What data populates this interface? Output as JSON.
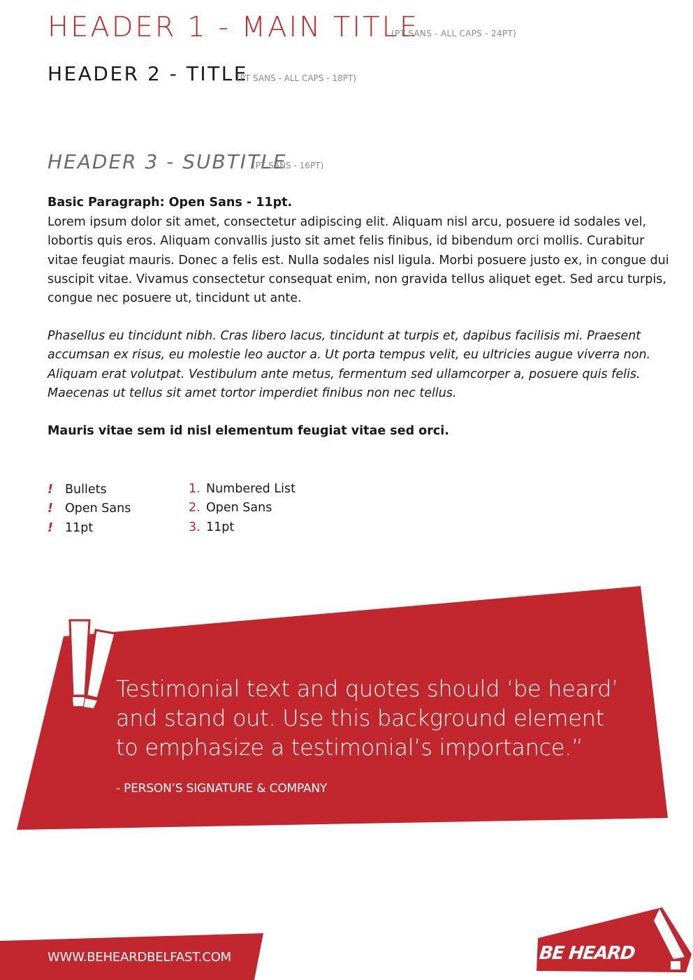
{
  "headers": {
    "h1": "HEADER 1 - MAIN TITLE",
    "h1_note": "(PT SANS - ALL CAPS - 24PT)",
    "h2": "HEADER 2 - TITLE",
    "h2_note": "(PT SANS - ALL CAPS - 18PT)",
    "h3": "HEADER 3 - SUBTITLE",
    "h3_note": "(PT SANS  - 16PT)"
  },
  "body": {
    "paragraph_heading": "Basic Paragraph: Open Sans - 11pt.",
    "paragraph": "Lorem ipsum dolor sit amet, consectetur adipiscing elit. Aliquam nisl arcu, posuere id sodales vel, lobortis quis eros. Aliquam convallis justo sit amet felis finibus, id bibendum orci mollis. Curabitur vitae feugiat mauris. Donec a felis est. Nulla sodales nisl ligula. Morbi posuere justo ex, in congue dui suscipit vitae. Vivamus consectetur consequat enim, non gravida tellus aliquet eget. Sed arcu turpis, congue nec posuere ut, tincidunt ut ante.",
    "italic_paragraph": "Phasellus eu tincidunt nibh. Cras libero lacus, tincidunt at turpis et, dapibus facilisis mi. Praesent accumsan ex risus, eu molestie leo auctor a. Ut porta tempus velit, eu ultricies augue viverra non. Aliquam erat volutpat. Vestibulum ante metus, fermentum sed ullamcorper a, posuere quis felis. Maecenas ut tellus sit amet tortor imperdiet finibus non nec tellus.",
    "bold_line": "Mauris vitae sem id nisl elementum feugiat vitae sed orci."
  },
  "bullet_list": {
    "marker": "!",
    "items": [
      "Bullets",
      "Open Sans",
      "11pt"
    ]
  },
  "numbered_list": {
    "markers": [
      "1.",
      "2.",
      "3."
    ],
    "items": [
      "Numbered List",
      "Open Sans",
      "11pt"
    ]
  },
  "testimonial": {
    "quote": "Testimonial text and quotes should ‘be heard’ and stand out. Use this background element to emphasize a testimonial’s importance.”",
    "signature": "- PERSON’S SIGNATURE & COMPANY"
  },
  "footer": {
    "url": "WWW.BEHEARDBELFAST.COM",
    "logo_text": "BE HEARD"
  },
  "colors": {
    "brand_red": "#c1272d",
    "text": "#1a1a1a",
    "muted": "#8a8a8a"
  }
}
